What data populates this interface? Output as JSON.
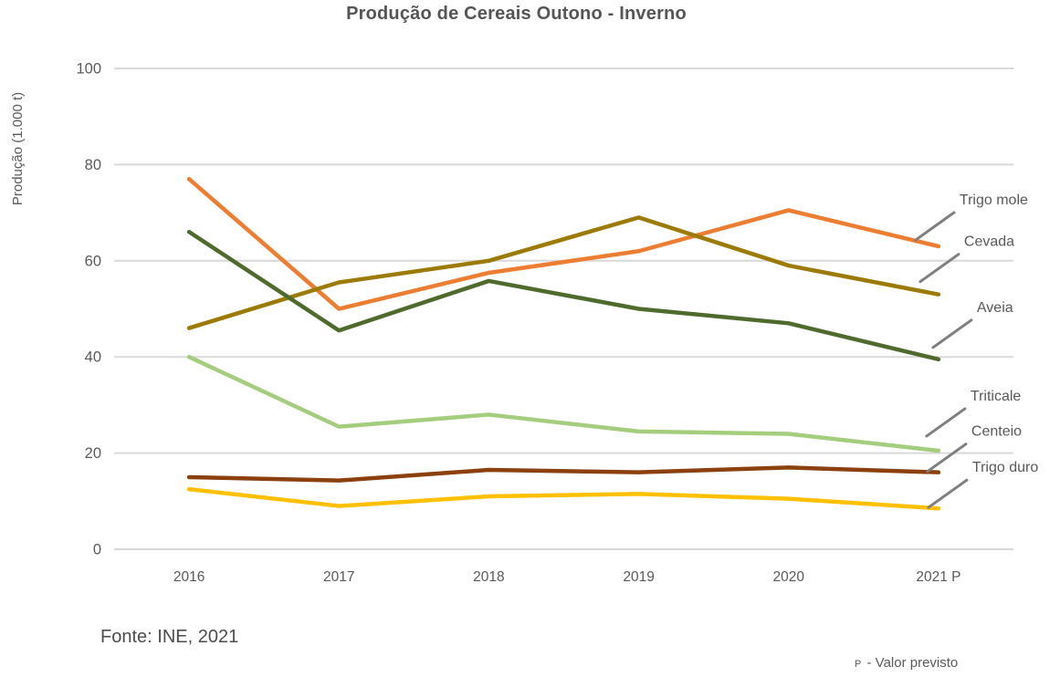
{
  "chart_data": {
    "type": "line",
    "title": "Produção de Cereais Outono - Inverno",
    "ylabel": "Produção (1.000 t)",
    "xlabel": "",
    "ylim": [
      0,
      100
    ],
    "yticks": [
      0,
      20,
      40,
      60,
      80,
      100
    ],
    "categories": [
      "2016",
      "2017",
      "2018",
      "2019",
      "2020",
      "2021 P"
    ],
    "grid": true,
    "legend_position": "right-annotations",
    "series": [
      {
        "name": "Trigo mole",
        "color": "#ED7D31",
        "values": [
          77,
          50,
          57.5,
          62,
          70.5,
          63
        ]
      },
      {
        "name": "Cevada",
        "color": "#9C7A06",
        "values": [
          46,
          55.5,
          60,
          69,
          59,
          53
        ]
      },
      {
        "name": "Aveia",
        "color": "#4F6A2D",
        "values": [
          66,
          45.5,
          55.8,
          50,
          47,
          39.5
        ]
      },
      {
        "name": "Triticale",
        "color": "#A5CD7E",
        "values": [
          40,
          25.5,
          28,
          24.5,
          24,
          20.5
        ]
      },
      {
        "name": "Centeio",
        "color": "#8B400E",
        "values": [
          15,
          14.3,
          16.5,
          16,
          17,
          16
        ]
      },
      {
        "name": "Trigo duro",
        "color": "#FFC000",
        "values": [
          12.5,
          9,
          11,
          11.5,
          10.5,
          8.5
        ]
      }
    ]
  },
  "source": "Fonte: INE, 2021",
  "footnote": {
    "marker": "P",
    "text": " - Valor previsto"
  },
  "colors": {
    "text": "#595959",
    "grid": "#D9D9D9",
    "leader": "#7F7F7F",
    "title": "#555555"
  }
}
